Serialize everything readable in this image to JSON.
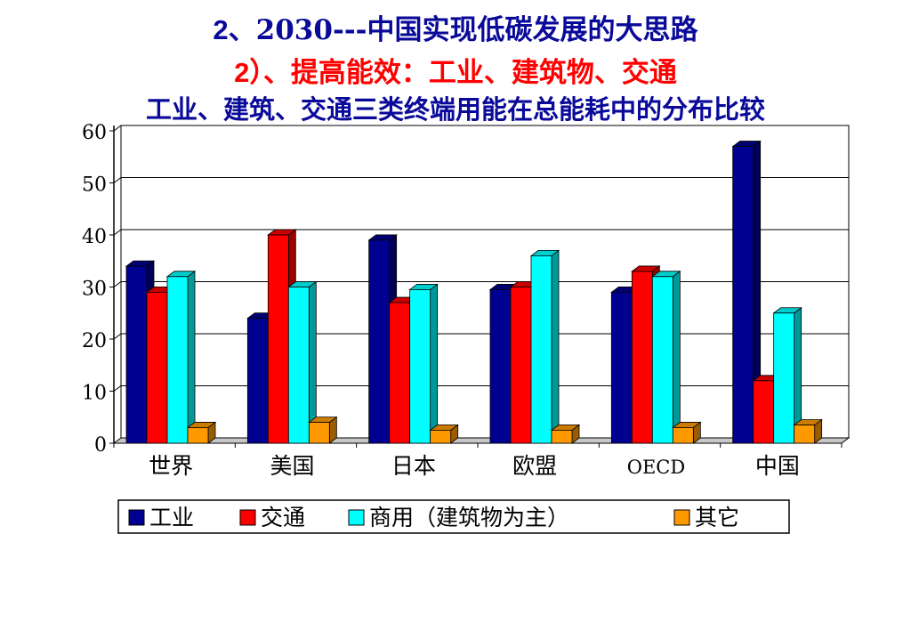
{
  "slide": {
    "title_prefix": "2",
    "title_rest": "、2030---中国实现低碳发展的大思路",
    "subtitle_prefix": "2",
    "subtitle_rest": "）、提高能效：工业、建筑物、交通",
    "heading": "工业、建筑、交通三类终端用能在总能耗中的分布比较"
  },
  "chart_data": {
    "type": "bar",
    "title": "工业、建筑、交通三类终端用能在总能耗中的分布比较",
    "categories": [
      "世界",
      "美国",
      "日本",
      "欧盟",
      "OECD",
      "中国"
    ],
    "ylim": [
      0,
      60
    ],
    "yticks": [
      0,
      10,
      20,
      30,
      40,
      50,
      60
    ],
    "grid": true,
    "legend_position": "bottom",
    "series": [
      {
        "name": "工业",
        "color": "#000090",
        "values": [
          34,
          24,
          39,
          29.5,
          29,
          57
        ]
      },
      {
        "name": "交通",
        "color": "#ff0000",
        "values": [
          29,
          40,
          27,
          30,
          33,
          12
        ]
      },
      {
        "name": "商用（建筑物为主）",
        "color": "#00ffff",
        "values": [
          32,
          30,
          29.5,
          36,
          32,
          25
        ]
      },
      {
        "name": "其它",
        "color": "#ff9900",
        "values": [
          3,
          4,
          2.5,
          2.5,
          3,
          3.5
        ]
      }
    ]
  }
}
